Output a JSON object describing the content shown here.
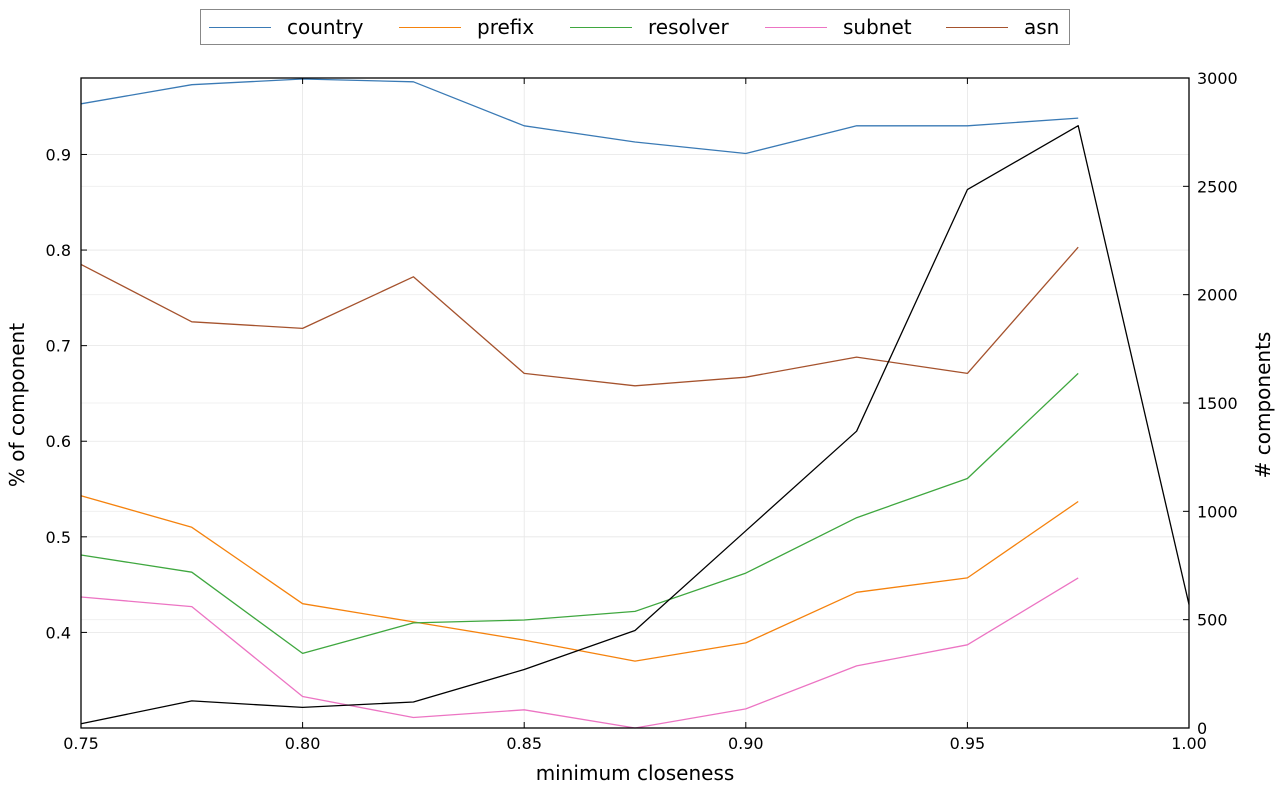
{
  "chart_data": {
    "type": "line",
    "xlabel": "minimum closeness",
    "ylabel": "% of component",
    "y2label": "# components",
    "xlim": [
      0.75,
      1.0
    ],
    "ylim": [
      0.3,
      0.98
    ],
    "y2lim": [
      0,
      3000
    ],
    "x_ticks": [
      0.75,
      0.8,
      0.85,
      0.9,
      0.95,
      1.0
    ],
    "x_tick_labels": [
      "0.75",
      "0.80",
      "0.85",
      "0.90",
      "0.95",
      "1.00"
    ],
    "y_ticks": [
      0.4,
      0.5,
      0.6,
      0.7,
      0.8,
      0.9
    ],
    "y_tick_labels": [
      "0.4",
      "0.5",
      "0.6",
      "0.7",
      "0.8",
      "0.9"
    ],
    "y2_ticks": [
      0,
      500,
      1000,
      1500,
      2000,
      2500,
      3000
    ],
    "y2_tick_labels": [
      "0",
      "500",
      "1000",
      "1500",
      "2000",
      "2500",
      "3000"
    ],
    "grid": true,
    "legend_position": "top-center",
    "series": [
      {
        "name": "country",
        "color": "#3a7ab5",
        "axis": "left",
        "x": [
          0.75,
          0.775,
          0.8,
          0.825,
          0.85,
          0.875,
          0.9,
          0.925,
          0.95,
          0.975
        ],
        "values": [
          0.953,
          0.973,
          0.979,
          0.976,
          0.93,
          0.913,
          0.901,
          0.93,
          0.93,
          0.938
        ]
      },
      {
        "name": "prefix",
        "color": "#f5820d",
        "axis": "left",
        "x": [
          0.75,
          0.775,
          0.8,
          0.825,
          0.85,
          0.875,
          0.9,
          0.925,
          0.95,
          0.975
        ],
        "values": [
          0.543,
          0.51,
          0.43,
          0.411,
          0.392,
          0.37,
          0.389,
          0.442,
          0.457,
          0.537
        ]
      },
      {
        "name": "resolver",
        "color": "#3fa73f",
        "axis": "left",
        "x": [
          0.75,
          0.775,
          0.8,
          0.825,
          0.85,
          0.875,
          0.9,
          0.925,
          0.95,
          0.975
        ],
        "values": [
          0.481,
          0.463,
          0.378,
          0.41,
          0.413,
          0.422,
          0.462,
          0.52,
          0.561,
          0.671
        ]
      },
      {
        "name": "subnet",
        "color": "#ec74c3",
        "axis": "left",
        "x": [
          0.75,
          0.775,
          0.8,
          0.825,
          0.85,
          0.875,
          0.9,
          0.925,
          0.95,
          0.975
        ],
        "values": [
          0.437,
          0.427,
          0.333,
          0.311,
          0.319,
          0.3,
          0.32,
          0.365,
          0.387,
          0.457
        ]
      },
      {
        "name": "asn",
        "color": "#a5522d",
        "axis": "left",
        "x": [
          0.75,
          0.775,
          0.8,
          0.825,
          0.85,
          0.875,
          0.9,
          0.925,
          0.95,
          0.975
        ],
        "values": [
          0.785,
          0.725,
          0.718,
          0.772,
          0.671,
          0.658,
          0.667,
          0.688,
          0.671,
          0.803
        ]
      },
      {
        "color": "#000000",
        "axis": "right",
        "x": [
          0.75,
          0.775,
          0.8,
          0.825,
          0.85,
          0.875,
          0.9,
          0.925,
          0.95,
          0.975,
          1.0
        ],
        "values": [
          20,
          125,
          95,
          120,
          270,
          450,
          910,
          1370,
          2485,
          2780,
          570
        ]
      }
    ]
  }
}
